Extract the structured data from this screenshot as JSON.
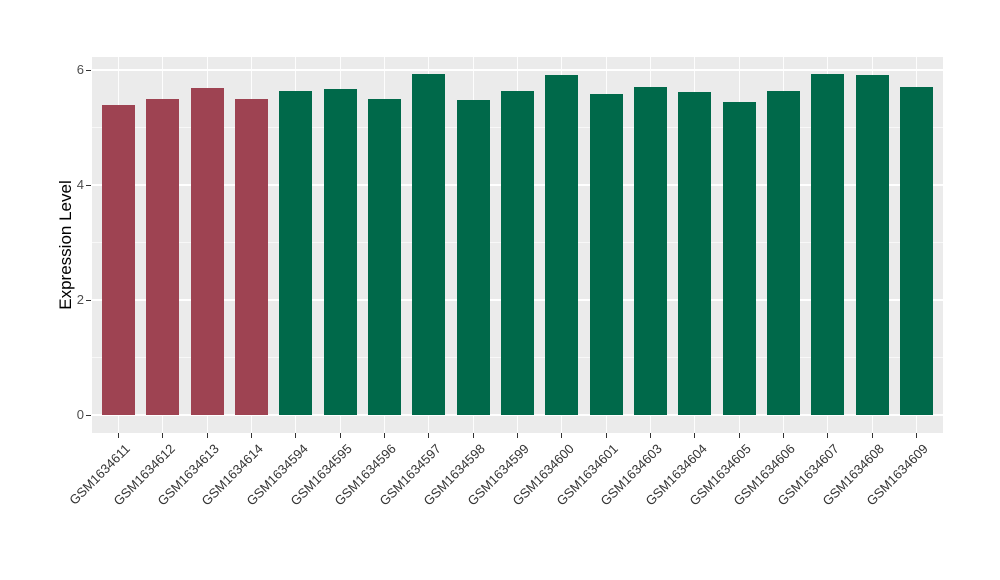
{
  "chart_data": {
    "type": "bar",
    "title": "",
    "xlabel": "",
    "ylabel": "Expression Level",
    "categories": [
      "GSM1634611",
      "GSM1634612",
      "GSM1634613",
      "GSM1634614",
      "GSM1634594",
      "GSM1634595",
      "GSM1634596",
      "GSM1634597",
      "GSM1634598",
      "GSM1634599",
      "GSM1634600",
      "GSM1634601",
      "GSM1634603",
      "GSM1634604",
      "GSM1634605",
      "GSM1634606",
      "GSM1634607",
      "GSM1634608",
      "GSM1634609"
    ],
    "values": [
      5.39,
      5.49,
      5.69,
      5.5,
      5.63,
      5.67,
      5.5,
      5.93,
      5.48,
      5.63,
      5.92,
      5.59,
      5.7,
      5.62,
      5.44,
      5.63,
      5.93,
      5.92,
      5.71
    ],
    "bar_colors": [
      "#9E4352",
      "#9E4352",
      "#9E4352",
      "#9E4352",
      "#00694A",
      "#00694A",
      "#00694A",
      "#00694A",
      "#00694A",
      "#00694A",
      "#00694A",
      "#00694A",
      "#00694A",
      "#00694A",
      "#00694A",
      "#00694A",
      "#00694A",
      "#00694A",
      "#00694A"
    ],
    "yticks": [
      0,
      2,
      4,
      6
    ],
    "ytick_labels": [
      "0",
      "2",
      "4",
      "6"
    ],
    "yticks_minor": [
      1,
      3,
      5
    ],
    "ylim": [
      0,
      6.23
    ],
    "grid": "on",
    "legend": "none",
    "style": {
      "panel_background": "#EBEBEB",
      "grid_color": "#FFFFFF",
      "axis_text_color": "#4D4D4D",
      "x_label_color": "#333333",
      "axis_title_color": "#000000",
      "figure_background": "#FFFFFF"
    }
  }
}
